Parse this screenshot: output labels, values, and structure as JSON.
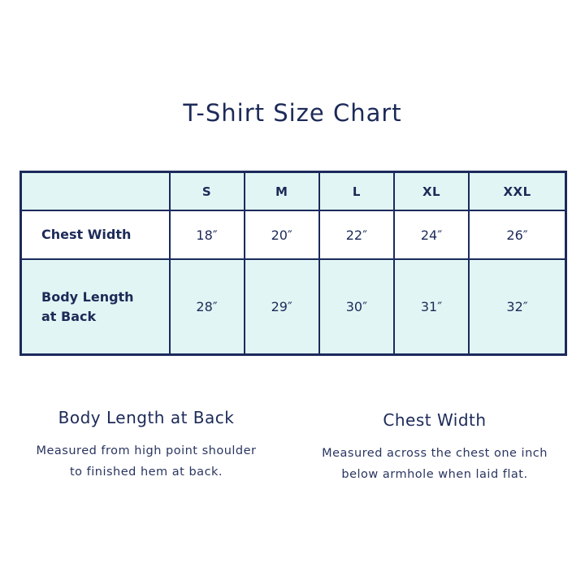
{
  "title": "T-Shirt Size Chart",
  "colors": {
    "navy": "#1b2a5c",
    "mint": "#e1f6f4"
  },
  "table": {
    "headers": [
      "",
      "S",
      "M",
      "L",
      "XL",
      "XXL"
    ],
    "rows": [
      {
        "label": "Chest Width",
        "values": [
          "18″",
          "20″",
          "22″",
          "24″",
          "26″"
        ]
      },
      {
        "label": "Body Length\nat Back",
        "values": [
          "28″",
          "29″",
          "30″",
          "31″",
          "32″"
        ]
      }
    ]
  },
  "notes": [
    {
      "heading": "Body Length at Back",
      "text": "Measured from high point shoulder\nto finished hem at back."
    },
    {
      "heading": "Chest Width",
      "text": "Measured across the chest one inch\nbelow armhole when laid flat."
    }
  ]
}
